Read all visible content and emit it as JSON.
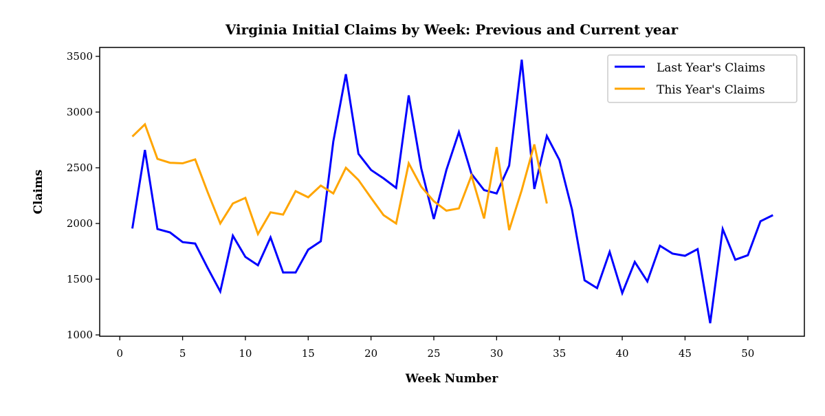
{
  "chart_data": {
    "type": "line",
    "title": "Virginia Initial Claims by Week: Previous and Current year",
    "xlabel": "Week Number",
    "ylabel": "Claims",
    "xlim": [
      -1.6,
      54.5
    ],
    "ylim": [
      988,
      3580
    ],
    "xticks": [
      0,
      5,
      10,
      15,
      20,
      25,
      30,
      35,
      40,
      45,
      50
    ],
    "yticks": [
      1000,
      1500,
      2000,
      2500,
      3000,
      3500
    ],
    "grid": false,
    "legend": "top-right",
    "series": [
      {
        "name": "Last Year's Claims",
        "color": "#0000ff",
        "x": [
          1,
          2,
          3,
          4,
          5,
          6,
          7,
          8,
          9,
          10,
          11,
          12,
          13,
          14,
          15,
          16,
          17,
          18,
          19,
          20,
          21,
          22,
          23,
          24,
          25,
          26,
          27,
          28,
          29,
          30,
          31,
          32,
          33,
          34,
          35,
          36,
          37,
          38,
          39,
          40,
          41,
          42,
          43,
          44,
          45,
          46,
          47,
          48,
          49,
          50,
          51,
          52
        ],
        "values": [
          1955,
          2660,
          1950,
          1920,
          1833,
          1820,
          1600,
          1390,
          1890,
          1700,
          1625,
          1875,
          1560,
          1560,
          1765,
          1840,
          2735,
          3340,
          2625,
          2480,
          2405,
          2320,
          3150,
          2495,
          2040,
          2480,
          2820,
          2445,
          2300,
          2270,
          2520,
          3470,
          2310,
          2785,
          2570,
          2125,
          1490,
          1420,
          1745,
          1375,
          1655,
          1480,
          1800,
          1730,
          1710,
          1770,
          1105,
          1950,
          1675,
          1715,
          2020,
          2075
        ]
      },
      {
        "name": "This Year's Claims",
        "color": "#ffa500",
        "x": [
          1,
          2,
          3,
          4,
          5,
          6,
          7,
          8,
          9,
          10,
          11,
          12,
          13,
          14,
          15,
          16,
          17,
          18,
          19,
          20,
          21,
          22,
          23,
          24,
          25,
          26,
          27,
          28,
          29,
          30,
          31,
          32,
          33,
          34
        ],
        "values": [
          2780,
          2890,
          2580,
          2545,
          2540,
          2575,
          2280,
          2000,
          2180,
          2230,
          1905,
          2100,
          2080,
          2290,
          2235,
          2340,
          2270,
          2500,
          2390,
          2230,
          2075,
          2000,
          2540,
          2330,
          2200,
          2115,
          2135,
          2430,
          2045,
          2685,
          1940,
          2300,
          2710,
          2180
        ]
      }
    ]
  }
}
